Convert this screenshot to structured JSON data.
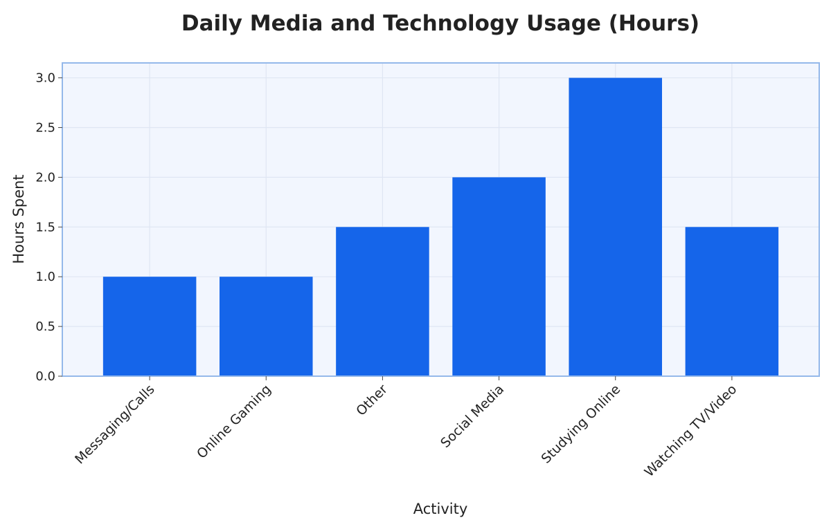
{
  "chart_data": {
    "type": "bar",
    "title": "Daily Media and Technology Usage (Hours)",
    "xlabel": "Activity",
    "ylabel": "Hours Spent",
    "categories": [
      "Messaging/Calls",
      "Online Gaming",
      "Other",
      "Social Media",
      "Studying Online",
      "Watching TV/Video"
    ],
    "values": [
      1.0,
      1.0,
      1.5,
      2.0,
      3.0,
      1.5
    ],
    "ylim": [
      0,
      3.15
    ],
    "yticks": [
      0.0,
      0.5,
      1.0,
      1.5,
      2.0,
      2.5,
      3.0
    ],
    "ytick_labels": [
      "0.0",
      "0.5",
      "1.0",
      "1.5",
      "2.0",
      "2.5",
      "3.0"
    ],
    "grid": true,
    "legend": "none",
    "colors": {
      "bar": "#1565ea",
      "plot_background": "#f2f6fe",
      "plot_border": "#94b8ea",
      "grid": "#dfe6f3"
    }
  }
}
